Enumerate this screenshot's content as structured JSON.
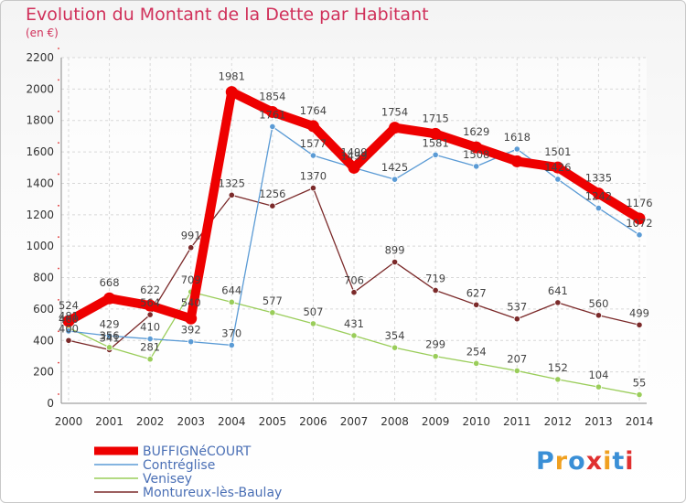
{
  "chart_data": {
    "type": "line",
    "title": "Evolution du Montant de la Dette par Habitant",
    "subtitle": "(en €)",
    "categories": [
      "2000",
      "2001",
      "2002",
      "2003",
      "2004",
      "2005",
      "2006",
      "2007",
      "2008",
      "2009",
      "2010",
      "2011",
      "2012",
      "2013",
      "2014"
    ],
    "ylim": [
      0,
      2200
    ],
    "yticks": [
      0,
      200,
      400,
      600,
      800,
      1000,
      1200,
      1400,
      1600,
      1800,
      2000,
      2200
    ],
    "grid": true,
    "legend_position": "bottom-left",
    "series": [
      {
        "name": "BUFFIGNéCOURT",
        "color": "#ee0000",
        "values": [
          524,
          668,
          622,
          540,
          1981,
          1854,
          1764,
          1499,
          1754,
          1715,
          1629,
          1540,
          1501,
          1335,
          1176
        ],
        "labels": [
          "524",
          "668",
          "622",
          "540",
          "1981",
          "1854",
          "1764",
          "1499",
          "1754",
          "1715",
          "1629",
          "",
          "1501",
          "1335",
          "1176"
        ]
      },
      {
        "name": "Contréglise",
        "color": "#5b9bd5",
        "values": [
          460,
          429,
          410,
          392,
          370,
          1761,
          1577,
          1499,
          1425,
          1581,
          1508,
          1618,
          1426,
          1242,
          1072
        ],
        "labels": [
          "460",
          "429",
          "410",
          "392",
          "370",
          "1761",
          "1577",
          "1499",
          "1425",
          "1581",
          "1508",
          "1618",
          "1426",
          "1242",
          "1072"
        ]
      },
      {
        "name": "Venisey",
        "color": "#9acd5a",
        "values": [
          481,
          356,
          281,
          709,
          644,
          577,
          507,
          431,
          354,
          299,
          254,
          207,
          152,
          104,
          55
        ],
        "labels": [
          "481",
          "356",
          "281",
          "709",
          "644",
          "577",
          "507",
          "431",
          "354",
          "299",
          "254",
          "207",
          "152",
          "104",
          "55"
        ]
      },
      {
        "name": "Montureux-lès-Baulay",
        "color": "#7b2a2a",
        "values": [
          400,
          341,
          564,
          991,
          1325,
          1256,
          1370,
          706,
          899,
          719,
          627,
          537,
          641,
          560,
          499
        ],
        "labels": [
          "400",
          "341",
          "564",
          "991",
          "1325",
          "1256",
          "1370",
          "706",
          "899",
          "719",
          "627",
          "537",
          "641",
          "560",
          "499"
        ]
      }
    ]
  },
  "brand": {
    "name": "Proxiti",
    "letters": [
      {
        "ch": "P",
        "color": "#3a8fd6"
      },
      {
        "ch": "r",
        "color": "#f0a020"
      },
      {
        "ch": "o",
        "color": "#3a8fd6"
      },
      {
        "ch": "x",
        "color": "#e03030"
      },
      {
        "ch": "i",
        "color": "#f0a020"
      },
      {
        "ch": "t",
        "color": "#3a8fd6"
      },
      {
        "ch": "i",
        "color": "#e03030"
      }
    ]
  }
}
